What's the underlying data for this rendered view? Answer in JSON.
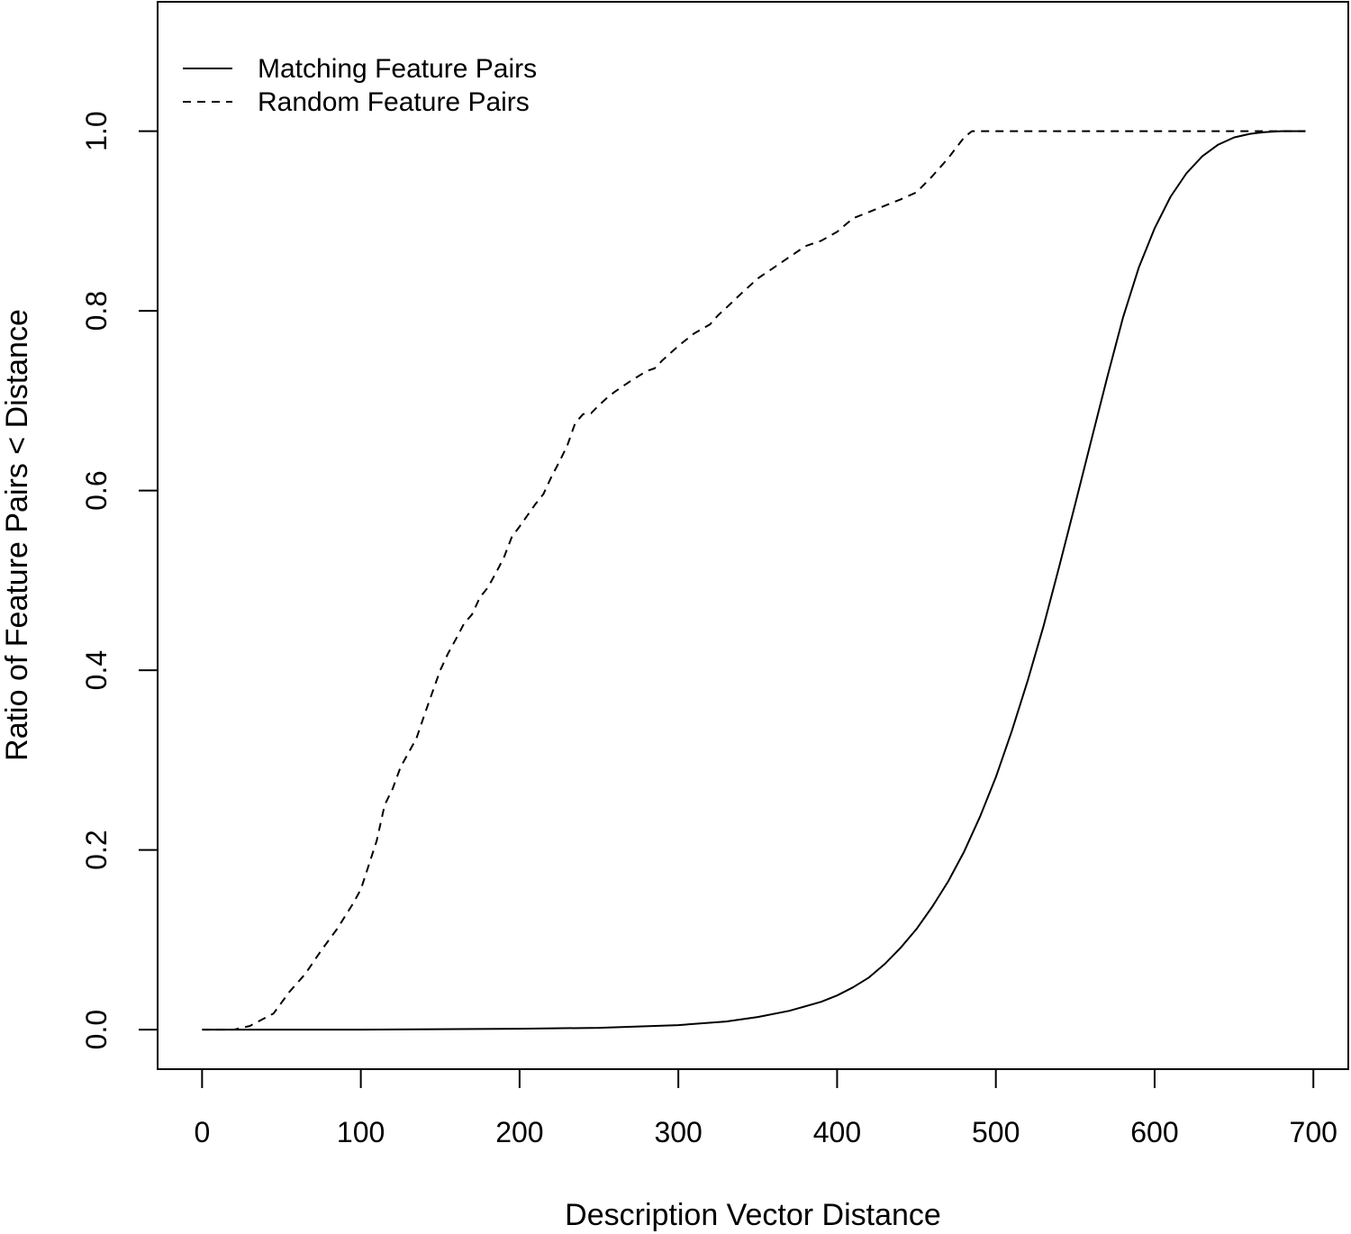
{
  "chart_data": {
    "type": "line",
    "title": "",
    "xlabel": "Description Vector Distance",
    "ylabel": "Ratio of Feature Pairs < Distance",
    "xlim": [
      -28,
      722
    ],
    "ylim": [
      -0.044,
      1.144
    ],
    "xticks": [
      0,
      100,
      200,
      300,
      400,
      500,
      600,
      700
    ],
    "yticks": [
      0.0,
      0.2,
      0.4,
      0.6,
      0.8,
      1.0
    ],
    "xtick_labels": [
      "0",
      "100",
      "200",
      "300",
      "400",
      "500",
      "600",
      "700"
    ],
    "ytick_labels": [
      "0.0",
      "0.2",
      "0.4",
      "0.6",
      "0.8",
      "1.0"
    ],
    "grid": false,
    "legend_position": "top-left",
    "series": [
      {
        "name": "Matching Feature Pairs",
        "line_style": "solid",
        "color": "#000000",
        "x": [
          0,
          100,
          200,
          250,
          300,
          330,
          350,
          370,
          390,
          400,
          410,
          420,
          430,
          440,
          450,
          460,
          470,
          480,
          490,
          500,
          510,
          520,
          530,
          540,
          550,
          560,
          570,
          580,
          590,
          600,
          610,
          620,
          630,
          640,
          650,
          660,
          670,
          680,
          690,
          695
        ],
        "y": [
          0.0,
          0.0,
          0.001,
          0.002,
          0.005,
          0.009,
          0.014,
          0.021,
          0.031,
          0.038,
          0.047,
          0.058,
          0.073,
          0.091,
          0.112,
          0.137,
          0.165,
          0.198,
          0.237,
          0.281,
          0.332,
          0.388,
          0.449,
          0.516,
          0.585,
          0.655,
          0.725,
          0.792,
          0.848,
          0.892,
          0.927,
          0.953,
          0.972,
          0.985,
          0.993,
          0.997,
          0.999,
          1.0,
          1.0,
          1.0
        ]
      },
      {
        "name": "Random Feature Pairs",
        "line_style": "dashed",
        "color": "#000000",
        "x": [
          0,
          20,
          30,
          45,
          55,
          65,
          75,
          85,
          95,
          100,
          105,
          110,
          115,
          120,
          125,
          130,
          135,
          140,
          145,
          150,
          155,
          160,
          165,
          170,
          175,
          180,
          185,
          190,
          195,
          200,
          210,
          215,
          220,
          225,
          230,
          235,
          240,
          245,
          250,
          255,
          260,
          270,
          280,
          285,
          290,
          300,
          310,
          320,
          325,
          330,
          340,
          350,
          360,
          370,
          380,
          390,
          400,
          410,
          420,
          430,
          440,
          450,
          460,
          470,
          480,
          485,
          695
        ],
        "y": [
          0.0,
          0.0,
          0.004,
          0.018,
          0.042,
          0.062,
          0.088,
          0.112,
          0.14,
          0.156,
          0.183,
          0.21,
          0.25,
          0.268,
          0.292,
          0.308,
          0.324,
          0.35,
          0.375,
          0.4,
          0.419,
          0.435,
          0.452,
          0.462,
          0.481,
          0.492,
          0.508,
          0.525,
          0.548,
          0.56,
          0.585,
          0.596,
          0.615,
          0.632,
          0.65,
          0.675,
          0.685,
          0.686,
          0.695,
          0.703,
          0.71,
          0.722,
          0.733,
          0.736,
          0.745,
          0.761,
          0.775,
          0.785,
          0.795,
          0.803,
          0.82,
          0.836,
          0.848,
          0.86,
          0.872,
          0.878,
          0.888,
          0.903,
          0.91,
          0.917,
          0.924,
          0.932,
          0.95,
          0.97,
          0.993,
          1.0,
          1.0
        ]
      }
    ]
  }
}
